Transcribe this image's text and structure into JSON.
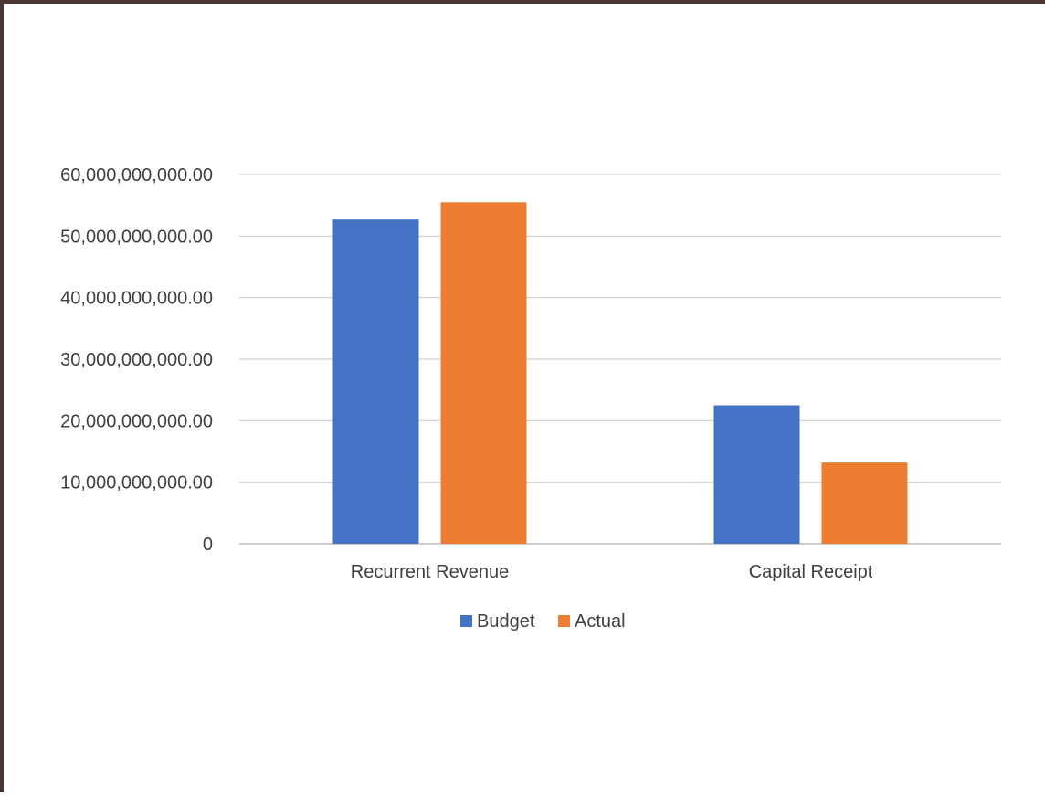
{
  "colors": {
    "budget": "#4472c4",
    "actual": "#ed7d31",
    "frame": "#4a3434"
  },
  "chart_data": {
    "type": "bar",
    "title": "",
    "xlabel": "",
    "ylabel": "",
    "categories": [
      "Recurrent Revenue",
      "Capital Receipt"
    ],
    "series": [
      {
        "name": "Budget",
        "color": "#4472c4",
        "values": [
          52700000000,
          22500000000
        ]
      },
      {
        "name": "Actual",
        "color": "#ed7d31",
        "values": [
          55500000000,
          13200000000
        ]
      }
    ],
    "ylim": [
      0,
      60000000000
    ],
    "yticks": [
      0,
      10000000000,
      20000000000,
      30000000000,
      40000000000,
      50000000000,
      60000000000
    ],
    "ytick_labels": [
      "0",
      "10,000,000,000.00",
      "20,000,000,000.00",
      "30,000,000,000.00",
      "40,000,000,000.00",
      "50,000,000,000.00",
      "60,000,000,000.00"
    ],
    "grid": true,
    "legend": "bottom"
  }
}
